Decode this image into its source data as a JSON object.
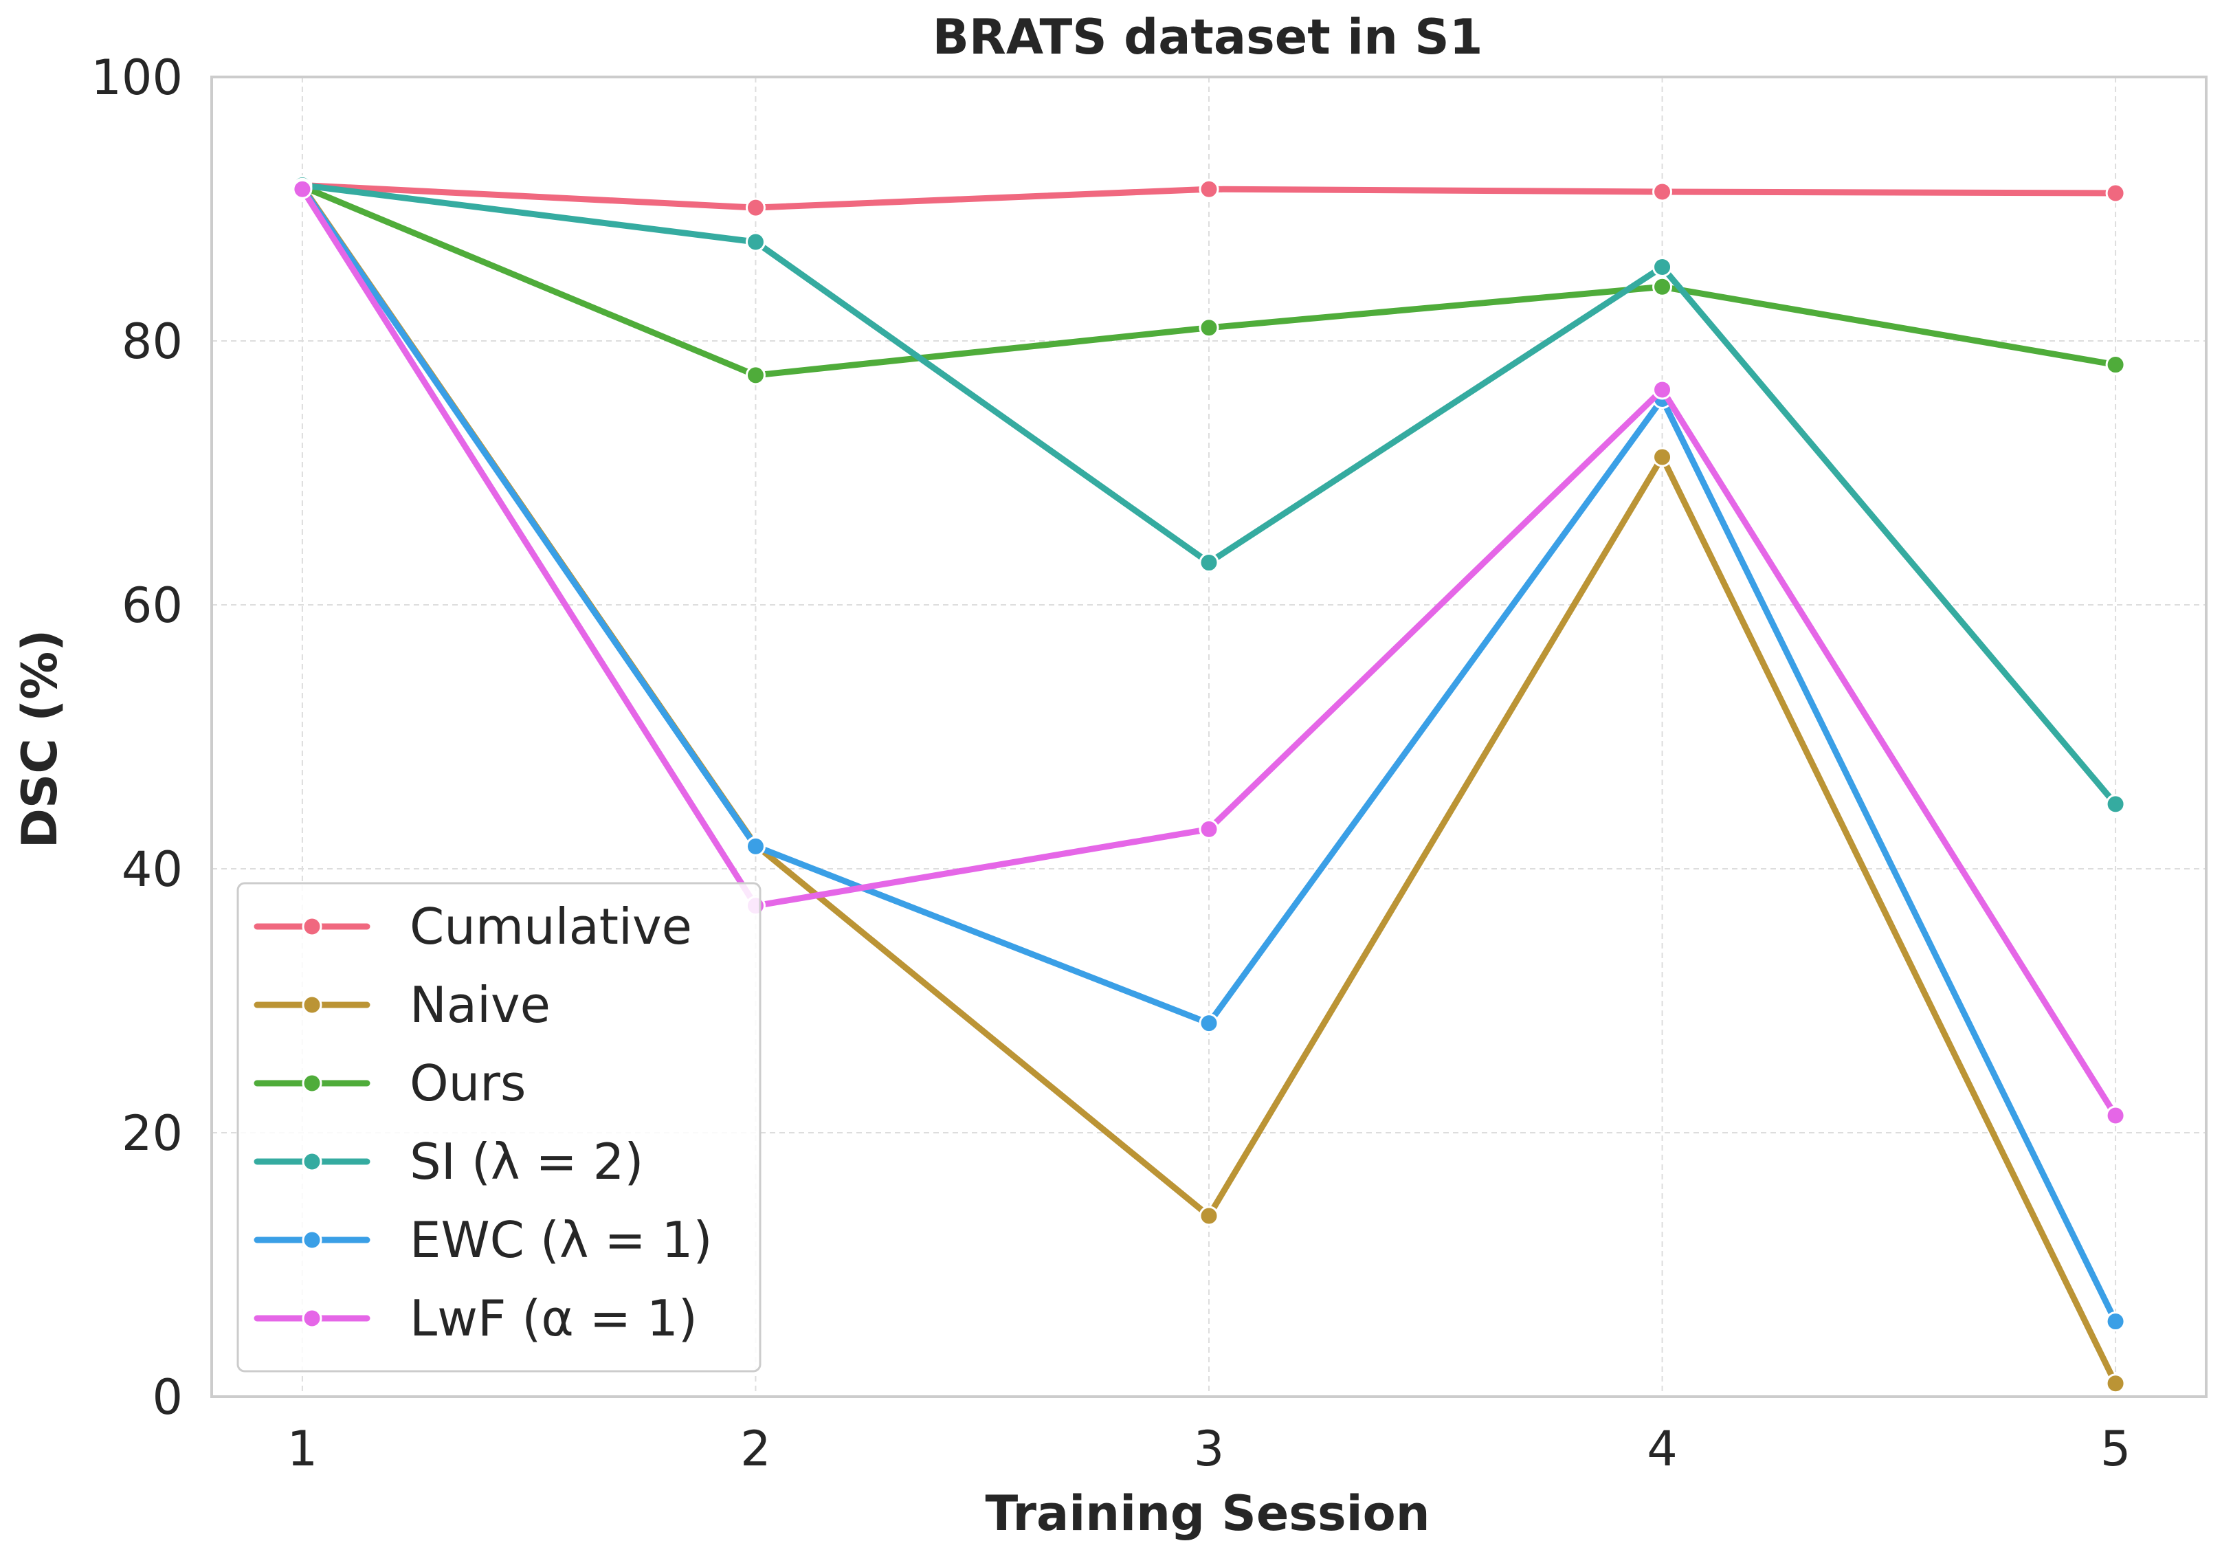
{
  "chart_data": {
    "type": "line",
    "title": "BRATS dataset in S1",
    "xlabel": "Training Session",
    "ylabel": "DSC (%)",
    "x": [
      1,
      2,
      3,
      4,
      5
    ],
    "xticks": [
      "1",
      "2",
      "3",
      "4",
      "5"
    ],
    "xlim": [
      0.8,
      5.2
    ],
    "ylim": [
      0,
      100
    ],
    "yticks": [
      "0",
      "20",
      "40",
      "60",
      "80",
      "100"
    ],
    "ytick_values": [
      0,
      20,
      40,
      60,
      80,
      100
    ],
    "grid": true,
    "legend_position": "lower-left",
    "series": [
      {
        "name": "Cumulative",
        "color": "#f0687f",
        "values": [
          91.8,
          90.1,
          91.5,
          91.3,
          91.2
        ]
      },
      {
        "name": "Naive",
        "color": "#bb9435",
        "values": [
          91.7,
          41.8,
          13.7,
          71.2,
          1.0
        ]
      },
      {
        "name": "Ours",
        "color": "#4fac3a",
        "values": [
          91.7,
          77.4,
          81.0,
          84.1,
          78.2
        ]
      },
      {
        "name": "SI (λ = 2)",
        "color": "#35aba0",
        "values": [
          91.8,
          87.5,
          63.2,
          85.6,
          44.9
        ]
      },
      {
        "name": "EWC (λ = 1)",
        "color": "#3a9fe6",
        "values": [
          91.6,
          41.7,
          28.3,
          75.6,
          5.7
        ]
      },
      {
        "name": "LwF (α = 1)",
        "color": "#e566e7",
        "values": [
          91.5,
          37.2,
          43.0,
          76.3,
          21.3
        ]
      }
    ]
  }
}
